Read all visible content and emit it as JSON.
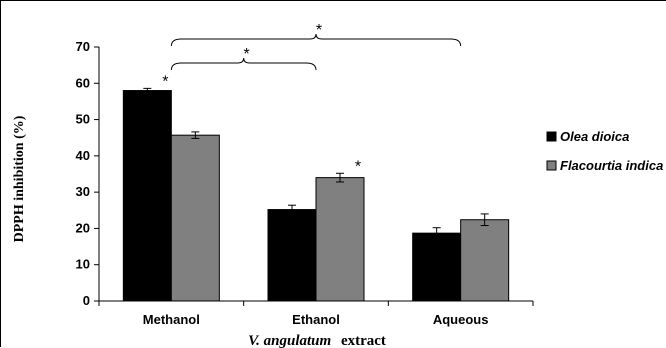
{
  "chart_data": {
    "type": "bar",
    "categories": [
      "Methanol",
      "Ethanol",
      "Aqueous"
    ],
    "series": [
      {
        "name": "Olea dioica",
        "values": [
          58,
          25.2,
          18.7
        ],
        "errors": [
          0.6,
          1.2,
          1.5
        ],
        "color": "#000000"
      },
      {
        "name": "Flacourtia indica",
        "values": [
          45.7,
          34,
          22.4
        ],
        "errors": [
          0.9,
          1.2,
          1.6
        ],
        "color": "#808080"
      }
    ],
    "ylabel": "DPPH inhibition (%)",
    "xlabel_italic": "V. angulatum",
    "xlabel_rest": "extract",
    "ylim": [
      0,
      70
    ],
    "yticks": [
      "0",
      "10",
      "20",
      "30",
      "40",
      "50",
      "60",
      "70"
    ],
    "legend_position": "right",
    "significance_symbol": "*",
    "bar_annotations": [
      {
        "category": "Methanol",
        "series": "Olea dioica",
        "label": "*"
      },
      {
        "category": "Ethanol",
        "series": "Flacourtia indica",
        "label": "*"
      }
    ],
    "brackets": [
      {
        "from": "Methanol",
        "to": "Ethanol",
        "label": "*"
      },
      {
        "from": "Methanol",
        "to": "Aqueous",
        "label": "*"
      }
    ]
  }
}
